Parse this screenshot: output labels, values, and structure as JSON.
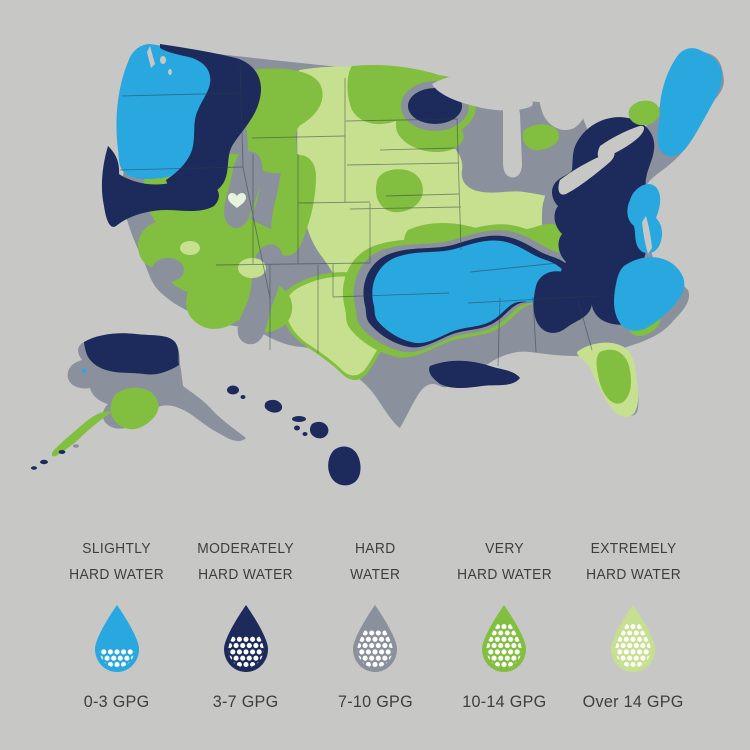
{
  "colors": {
    "background": "#C7C8C6",
    "gray": "#8A919C",
    "blue": "#29A8DF",
    "navy": "#1C2B5B",
    "green": "#82BE3F",
    "lightgreen": "#C7E08F",
    "pale": "#E9F2DC",
    "white": "#FFFFFF",
    "text": "#3E3E3E",
    "line": "#2F3B4A"
  },
  "legend": {
    "items": [
      {
        "label_line1": "SLIGHTLY",
        "label_line2": "HARD WATER",
        "range": "0-3 GPG",
        "color_key": "blue",
        "dot_rows": 3
      },
      {
        "label_line1": "MODERATELY",
        "label_line2": "HARD WATER",
        "range": "3-7 GPG",
        "color_key": "navy",
        "dot_rows": 5
      },
      {
        "label_line1": "HARD",
        "label_line2": "WATER",
        "range": "7-10 GPG",
        "color_key": "gray",
        "dot_rows": 6
      },
      {
        "label_line1": "VERY",
        "label_line2": "HARD WATER",
        "range": "10-14 GPG",
        "color_key": "green",
        "dot_rows": 7
      },
      {
        "label_line1": "EXTREMELY",
        "label_line2": "HARD WATER",
        "range": "Over 14 GPG",
        "color_key": "lightgreen",
        "dot_rows": 7
      }
    ]
  },
  "map": {
    "areas": [
      {
        "area": "Pacific Northwest coast",
        "category": "slightly-hard"
      },
      {
        "area": "Inland Northwest",
        "category": "moderately-hard"
      },
      {
        "area": "Great Basin and Southwest",
        "category": "very-hard"
      },
      {
        "area": "Great Plains and Midwest",
        "category": "extremely-hard"
      },
      {
        "area": "Upper Midwest",
        "category": "very-hard"
      },
      {
        "area": "Texas",
        "category": "hard"
      },
      {
        "area": "Lower Mississippi / Deep South",
        "category": "slightly-hard"
      },
      {
        "area": "Appalachia and Mid-Atlantic",
        "category": "moderately-hard"
      },
      {
        "area": "New England and Atlantic coast",
        "category": "slightly-hard"
      },
      {
        "area": "Florida",
        "category": "extremely-hard"
      },
      {
        "area": "Alaska",
        "category": "hard"
      },
      {
        "area": "Hawaii",
        "category": "moderately-hard"
      }
    ]
  }
}
